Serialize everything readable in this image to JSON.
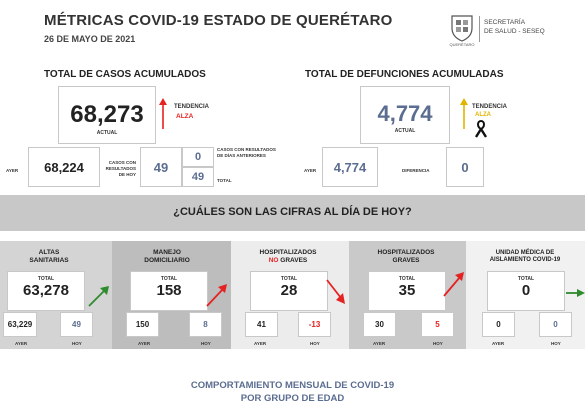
{
  "header": {
    "title": "MÉTRICAS COVID-19 ESTADO DE QUERÉTARO",
    "date": "26 DE MAYO DE 2021",
    "logo_caption": "QUERÉTARO",
    "secretaria_line1": "SECRETARÍA",
    "secretaria_line2": "DE SALUD - SESEQ"
  },
  "casos": {
    "title": "TOTAL DE CASOS ACUMULADOS",
    "actual": "68,273",
    "actual_label": "ACTUAL",
    "tendencia_label": "TENDENCIA",
    "tendencia_value": "ALZA",
    "ayer_label": "AYER",
    "ayer": "68,224",
    "nuevos_label": "CASOS CON RESULTADOS DE HOY",
    "nuevos": "49",
    "anteriores_label": "CASOS CON RESULTADOS DE DÍAS ANTERIORES",
    "anteriores": "0",
    "total": "49",
    "total_label": "TOTAL"
  },
  "defunciones": {
    "title": "TOTAL DE DEFUNCIONES ACUMULADAS",
    "actual": "4,774",
    "actual_label": "ACTUAL",
    "tendencia_label": "TENDENCIA",
    "tendencia_value": "ALZA",
    "ayer_label": "AYER",
    "ayer": "4,774",
    "diferencia_label": "DIFERENCIA",
    "diferencia": "0"
  },
  "banner": {
    "text": "¿CUÁLES SON LAS CIFRAS AL DÍA DE HOY?"
  },
  "cards": [
    {
      "title1": "ALTAS",
      "title2": "SANITARIAS",
      "total_label": "TOTAL",
      "total": "63,278",
      "ayer": "63,229",
      "hoy": "49",
      "ayer_label": "AYER",
      "hoy_label": "HOY",
      "arrow_color": "#2e8b2e"
    },
    {
      "title1": "MANEJO",
      "title2": "DOMICILIARIO",
      "total_label": "TOTAL",
      "total": "158",
      "ayer": "150",
      "hoy": "8",
      "ayer_label": "AYER",
      "hoy_label": "HOY",
      "arrow_color": "#e52222"
    },
    {
      "title1": "HOSPITALIZADOS",
      "title2a": "NO",
      "title2b": " GRAVES",
      "total_label": "TOTAL",
      "total": "28",
      "ayer": "41",
      "hoy": "-13",
      "ayer_label": "AYER",
      "hoy_label": "HOY",
      "arrow_color": "#e52222"
    },
    {
      "title1": "HOSPITALIZADOS",
      "title2": "GRAVES",
      "total_label": "TOTAL",
      "total": "35",
      "ayer": "30",
      "hoy": "5",
      "ayer_label": "AYER",
      "hoy_label": "HOY",
      "arrow_color": "#e52222"
    },
    {
      "title1": "UNIDAD MÉDICA DE",
      "title2": "AISLAMIENTO COVID-19",
      "total_label": "TOTAL",
      "total": "0",
      "ayer": "0",
      "hoy": "0",
      "ayer_label": "AYER",
      "hoy_label": "HOY",
      "arrow_color": "#2e8b2e"
    }
  ],
  "footer": {
    "line1": "COMPORTAMIENTO MENSUAL DE COVID-19",
    "line2": "POR GRUPO DE EDAD"
  },
  "colors": {
    "red": "#e52222",
    "green": "#2e8b2e",
    "slate": "#5b6d90",
    "gold": "#e0b400"
  }
}
